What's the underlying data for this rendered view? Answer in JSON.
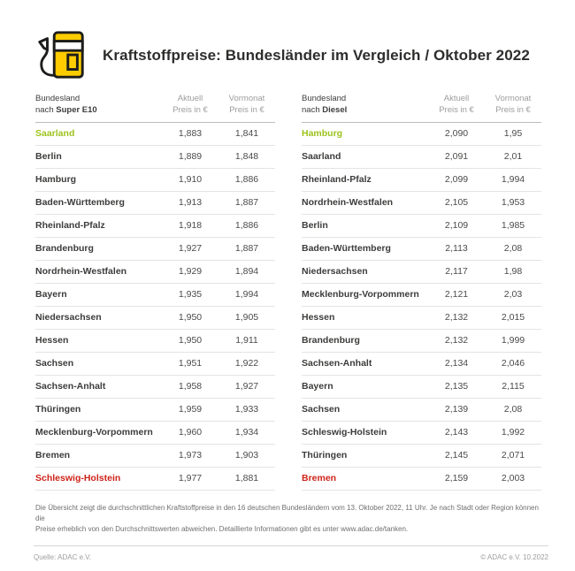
{
  "header": {
    "title": "Kraftstoffpreise: Bundesländer im Vergleich / Oktober 2022",
    "icon": "fuel-pump-icon"
  },
  "colors": {
    "green": "#9cc31c",
    "red": "#ce2318",
    "yellow": "#ffcc00",
    "outline": "#1d1d1b"
  },
  "chart_data": [
    {
      "type": "table",
      "header": {
        "line1": "Bundesland",
        "line2_prefix": "nach ",
        "line2_bold": "Super E10",
        "col1_line1": "Aktuell",
        "col1_line2": "Preis in €",
        "col2_line1": "Vormonat",
        "col2_line2": "Preis in €"
      },
      "rows": [
        {
          "name": "Saarland",
          "aktuell": "1,883",
          "vormonat": "1,841",
          "highlight": "green"
        },
        {
          "name": "Berlin",
          "aktuell": "1,889",
          "vormonat": "1,848",
          "highlight": null
        },
        {
          "name": "Hamburg",
          "aktuell": "1,910",
          "vormonat": "1,886",
          "highlight": null
        },
        {
          "name": "Baden-Württemberg",
          "aktuell": "1,913",
          "vormonat": "1,887",
          "highlight": null
        },
        {
          "name": "Rheinland-Pfalz",
          "aktuell": "1,918",
          "vormonat": "1,886",
          "highlight": null
        },
        {
          "name": "Brandenburg",
          "aktuell": "1,927",
          "vormonat": "1,887",
          "highlight": null
        },
        {
          "name": "Nordrhein-Westfalen",
          "aktuell": "1,929",
          "vormonat": "1,894",
          "highlight": null
        },
        {
          "name": "Bayern",
          "aktuell": "1,935",
          "vormonat": "1,994",
          "highlight": null
        },
        {
          "name": "Niedersachsen",
          "aktuell": "1,950",
          "vormonat": "1,905",
          "highlight": null
        },
        {
          "name": "Hessen",
          "aktuell": "1,950",
          "vormonat": "1,911",
          "highlight": null
        },
        {
          "name": "Sachsen",
          "aktuell": "1,951",
          "vormonat": "1,922",
          "highlight": null
        },
        {
          "name": "Sachsen-Anhalt",
          "aktuell": "1,958",
          "vormonat": "1,927",
          "highlight": null
        },
        {
          "name": "Thüringen",
          "aktuell": "1,959",
          "vormonat": "1,933",
          "highlight": null
        },
        {
          "name": "Mecklenburg-Vorpommern",
          "aktuell": "1,960",
          "vormonat": "1,934",
          "highlight": null
        },
        {
          "name": "Bremen",
          "aktuell": "1,973",
          "vormonat": "1,903",
          "highlight": null
        },
        {
          "name": "Schleswig-Holstein",
          "aktuell": "1,977",
          "vormonat": "1,881",
          "highlight": "red"
        }
      ]
    },
    {
      "type": "table",
      "header": {
        "line1": "Bundesland",
        "line2_prefix": "nach ",
        "line2_bold": "Diesel",
        "col1_line1": "Aktuell",
        "col1_line2": "Preis in €",
        "col2_line1": "Vormonat",
        "col2_line2": "Preis in €"
      },
      "rows": [
        {
          "name": "Hamburg",
          "aktuell": "2,090",
          "vormonat": "1,95",
          "highlight": "green"
        },
        {
          "name": "Saarland",
          "aktuell": "2,091",
          "vormonat": "2,01",
          "highlight": null
        },
        {
          "name": "Rheinland-Pfalz",
          "aktuell": "2,099",
          "vormonat": "1,994",
          "highlight": null
        },
        {
          "name": "Nordrhein-Westfalen",
          "aktuell": "2,105",
          "vormonat": "1,953",
          "highlight": null
        },
        {
          "name": "Berlin",
          "aktuell": "2,109",
          "vormonat": "1,985",
          "highlight": null
        },
        {
          "name": "Baden-Württemberg",
          "aktuell": "2,113",
          "vormonat": "2,08",
          "highlight": null
        },
        {
          "name": "Niedersachsen",
          "aktuell": "2,117",
          "vormonat": "1,98",
          "highlight": null
        },
        {
          "name": "Mecklenburg-Vorpommern",
          "aktuell": "2,121",
          "vormonat": "2,03",
          "highlight": null
        },
        {
          "name": "Hessen",
          "aktuell": "2,132",
          "vormonat": "2,015",
          "highlight": null
        },
        {
          "name": "Brandenburg",
          "aktuell": "2,132",
          "vormonat": "1,999",
          "highlight": null
        },
        {
          "name": "Sachsen-Anhalt",
          "aktuell": "2,134",
          "vormonat": "2,046",
          "highlight": null
        },
        {
          "name": "Bayern",
          "aktuell": "2,135",
          "vormonat": "2,115",
          "highlight": null
        },
        {
          "name": "Sachsen",
          "aktuell": "2,139",
          "vormonat": "2,08",
          "highlight": null
        },
        {
          "name": "Schleswig-Holstein",
          "aktuell": "2,143",
          "vormonat": "1,992",
          "highlight": null
        },
        {
          "name": "Thüringen",
          "aktuell": "2,145",
          "vormonat": "2,071",
          "highlight": null
        },
        {
          "name": "Bremen",
          "aktuell": "2,159",
          "vormonat": "2,003",
          "highlight": "red"
        }
      ]
    }
  ],
  "footnote": [
    "Die Übersicht zeigt die durchschnittlichen Kraftstoffpreise in den 16 deutschen Bundesländern vom 13. Oktober 2022, 11 Uhr. Je nach Stadt oder Region können die",
    "Preise erheblich von den Durchschnittswerten abweichen. Detaillierte Informationen gibt es unter www.adac.de/tanken."
  ],
  "footer": {
    "source": "Quelle: ADAC e.V.",
    "copyright": "© ADAC e.V. 10.2022"
  }
}
